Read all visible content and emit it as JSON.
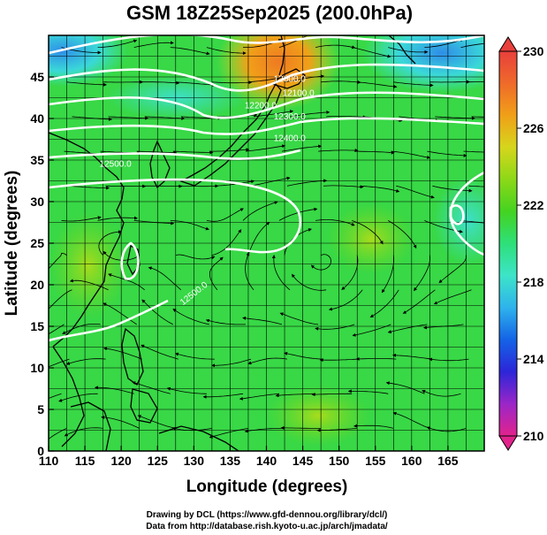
{
  "figure": {
    "title": "GSM 18Z25Sep2025 (200.0hPa)",
    "credit_line1": "Drawing by DCL (https://www.gfd-dennou.org/library/dcl/)",
    "credit_line2": "Data from http://database.rish.kyoto-u.ac.jp/arch/jmadata/"
  },
  "map": {
    "xlabel": "Longitude (degrees)",
    "ylabel": "Latitude  (degrees)",
    "lon_range": [
      110,
      170
    ],
    "lat_range": [
      0,
      50
    ],
    "lon_ticks": [
      110,
      115,
      120,
      125,
      130,
      135,
      140,
      145,
      150,
      155,
      160,
      165
    ],
    "lat_ticks": [
      0,
      5,
      10,
      15,
      20,
      25,
      30,
      35,
      40,
      45
    ],
    "grid_spacing_deg": 2.5,
    "grid": true,
    "contour_color": "#ffffff",
    "contour_labels": [
      "12000.0",
      "12100.0",
      "12200.0",
      "12300.0",
      "12400.0",
      "12500.0",
      "12500.0"
    ],
    "contour_label_positions": [
      {
        "lon": 141.0,
        "lat": 44.4
      },
      {
        "lon": 142.2,
        "lat": 42.7
      },
      {
        "lon": 137.0,
        "lat": 41.2
      },
      {
        "lon": 141.0,
        "lat": 39.9
      },
      {
        "lon": 141.0,
        "lat": 37.3
      },
      {
        "lon": 117.0,
        "lat": 34.2
      },
      {
        "lon": 128.5,
        "lat": 17.5
      }
    ],
    "coastline_color": "#000000",
    "streamline_color": "#000000"
  },
  "colorbar": {
    "ticks": [
      "230",
      "226",
      "222",
      "218",
      "214",
      "210"
    ],
    "range": [
      210,
      230
    ],
    "colors": [
      "#e2238c",
      "#9b26c8",
      "#2c26d8",
      "#1463e6",
      "#2eb2ec",
      "#3de4c8",
      "#2ee07a",
      "#43d321",
      "#8cd818",
      "#d6d61c",
      "#f0a018",
      "#ef6a2a",
      "#e8403c"
    ]
  },
  "chart_data": {
    "type": "heatmap",
    "title": "GSM 18Z25Sep2025 (200.0hPa)",
    "xlabel": "Longitude (degrees)",
    "ylabel": "Latitude  (degrees)",
    "xlim": [
      110,
      170
    ],
    "ylim": [
      0,
      50
    ],
    "zlim": [
      210,
      230
    ],
    "x_ticks": [
      110,
      115,
      120,
      125,
      130,
      135,
      140,
      145,
      150,
      155,
      160,
      165
    ],
    "y_ticks": [
      0,
      5,
      10,
      15,
      20,
      25,
      30,
      35,
      40,
      45
    ],
    "colorbar_ticks": [
      210,
      214,
      218,
      222,
      226,
      230
    ],
    "temperature_samples": [
      {
        "lon": 112,
        "lat": 48,
        "value": 217
      },
      {
        "lon": 120,
        "lat": 47,
        "value": 220
      },
      {
        "lon": 133,
        "lat": 48,
        "value": 222
      },
      {
        "lon": 141,
        "lat": 47,
        "value": 226
      },
      {
        "lon": 144,
        "lat": 46,
        "value": 227
      },
      {
        "lon": 150,
        "lat": 47,
        "value": 222
      },
      {
        "lon": 158,
        "lat": 47,
        "value": 218
      },
      {
        "lon": 168,
        "lat": 47,
        "value": 219
      },
      {
        "lon": 155,
        "lat": 40,
        "value": 222
      },
      {
        "lon": 160,
        "lat": 34,
        "value": 221
      },
      {
        "lon": 166,
        "lat": 33,
        "value": 219
      },
      {
        "lon": 155,
        "lat": 30,
        "value": 223
      },
      {
        "lon": 120,
        "lat": 30,
        "value": 222
      },
      {
        "lon": 140,
        "lat": 25,
        "value": 222
      },
      {
        "lon": 112,
        "lat": 20,
        "value": 223
      },
      {
        "lon": 150,
        "lat": 10,
        "value": 222
      },
      {
        "lon": 165,
        "lat": 15,
        "value": 221
      },
      {
        "lon": 120,
        "lat": 5,
        "value": 222
      },
      {
        "lon": 160,
        "lat": 3,
        "value": 223
      }
    ],
    "height_contours_m": [
      12000,
      12100,
      12200,
      12300,
      12400,
      12500
    ]
  }
}
